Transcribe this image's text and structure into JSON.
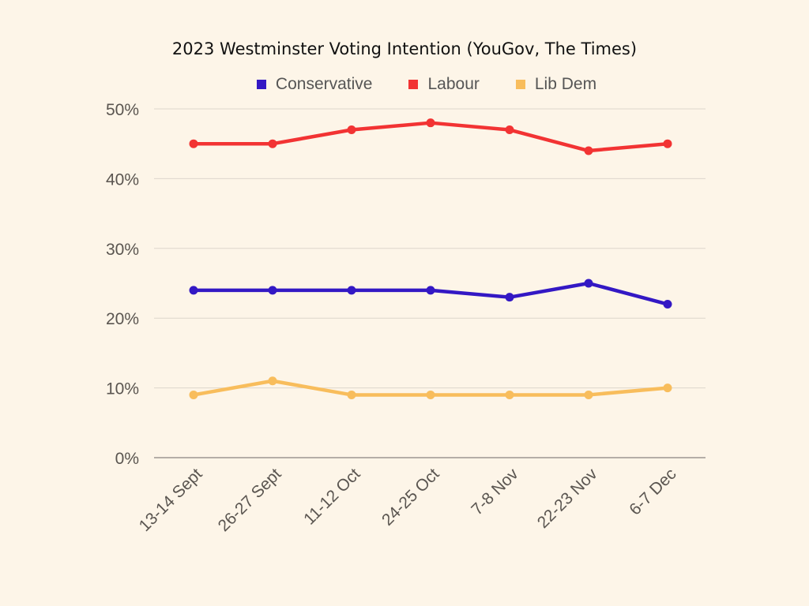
{
  "chart_data": {
    "type": "line",
    "title": "2023 Westminster Voting Intention (YouGov, The Times)",
    "xlabel": "",
    "ylabel": "",
    "categories": [
      "13-14 Sept",
      "26-27 Sept",
      "11-12 Oct",
      "24-25 Oct",
      "7-8 Nov",
      "22-23 Nov",
      "6-7 Dec"
    ],
    "ylim": [
      0,
      50
    ],
    "yticks": [
      0,
      10,
      20,
      30,
      40,
      50
    ],
    "ytick_labels": [
      "0%",
      "10%",
      "20%",
      "30%",
      "40%",
      "50%"
    ],
    "grid": true,
    "legend_position": "top-center",
    "series": [
      {
        "name": "Conservative",
        "color": "#3318c4",
        "values": [
          24,
          24,
          24,
          24,
          23,
          25,
          22
        ]
      },
      {
        "name": "Labour",
        "color": "#f23333",
        "values": [
          45,
          45,
          47,
          48,
          47,
          44,
          45
        ]
      },
      {
        "name": "Lib Dem",
        "color": "#f8bd5c",
        "values": [
          9,
          11,
          9,
          9,
          9,
          9,
          10
        ]
      }
    ]
  }
}
